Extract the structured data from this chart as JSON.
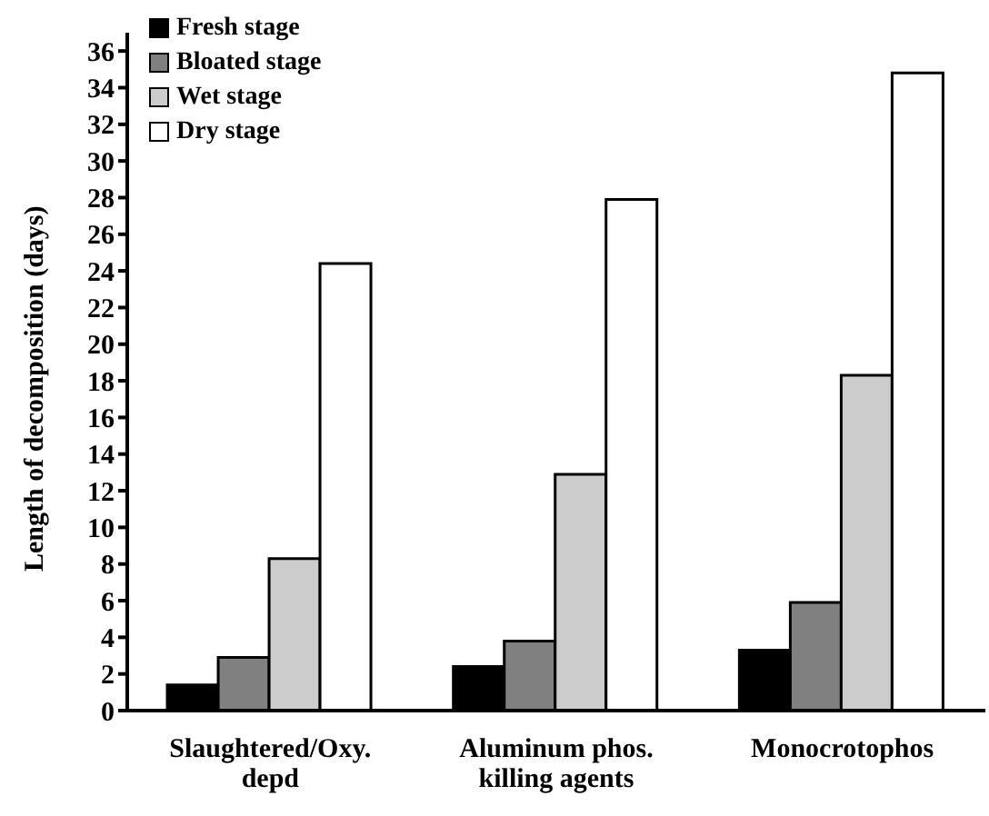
{
  "chart_data": {
    "type": "bar",
    "ylabel": "Length of decomposition (days)",
    "categories": [
      "Slaughtered/Oxy. depd",
      "Aluminum phos. killing agents",
      "Monocrotophos"
    ],
    "series": [
      {
        "name": "Fresh stage",
        "color": "#000000",
        "values": [
          1.4,
          2.4,
          3.3
        ]
      },
      {
        "name": "Bloated stage",
        "color": "#808080",
        "values": [
          2.9,
          3.8,
          5.9
        ]
      },
      {
        "name": "Wet stage",
        "color": "#cccccc",
        "values": [
          8.3,
          12.9,
          18.3
        ]
      },
      {
        "name": "Dry stage",
        "color": "#ffffff",
        "values": [
          24.4,
          27.9,
          34.8
        ]
      }
    ],
    "ylim": [
      0,
      37
    ],
    "yticks": [
      0,
      2,
      4,
      6,
      8,
      10,
      12,
      14,
      16,
      18,
      20,
      22,
      24,
      26,
      28,
      30,
      32,
      34,
      36
    ],
    "grid": false,
    "legend": "top left"
  }
}
